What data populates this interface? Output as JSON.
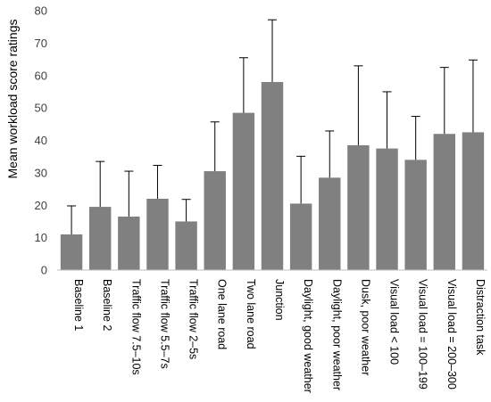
{
  "chart_data": {
    "type": "bar",
    "ylabel": "Mean workload score ratings",
    "ylim": [
      0,
      80
    ],
    "yticks": [
      0,
      10,
      20,
      30,
      40,
      50,
      60,
      70,
      80
    ],
    "grid": false,
    "error_bars": true,
    "bar_color": "#808080",
    "categories": [
      "Baseline 1",
      "Baseline 2",
      "Traffic flow 7.5–10s",
      "Traffic flow 5.5–7s",
      "Traffic flow 2–5s",
      "One lane road",
      "Two lane road",
      "Junction",
      "Daylight, good weather",
      "Daylight, poor weather",
      "Dusk, poor weather",
      "Visual load < 100",
      "Visual load = 100–199",
      "Visual load = 200–300",
      "Distraction task"
    ],
    "values": [
      11,
      19.5,
      16.5,
      22,
      15,
      30.5,
      48.5,
      58,
      20.5,
      28.5,
      38.5,
      37.5,
      34,
      42,
      42.5
    ],
    "error_upper": [
      19.8,
      33.5,
      30.5,
      32.3,
      21.8,
      45.7,
      65.5,
      77.2,
      35.1,
      42.9,
      63,
      55,
      47.4,
      62.5,
      64.8
    ]
  }
}
